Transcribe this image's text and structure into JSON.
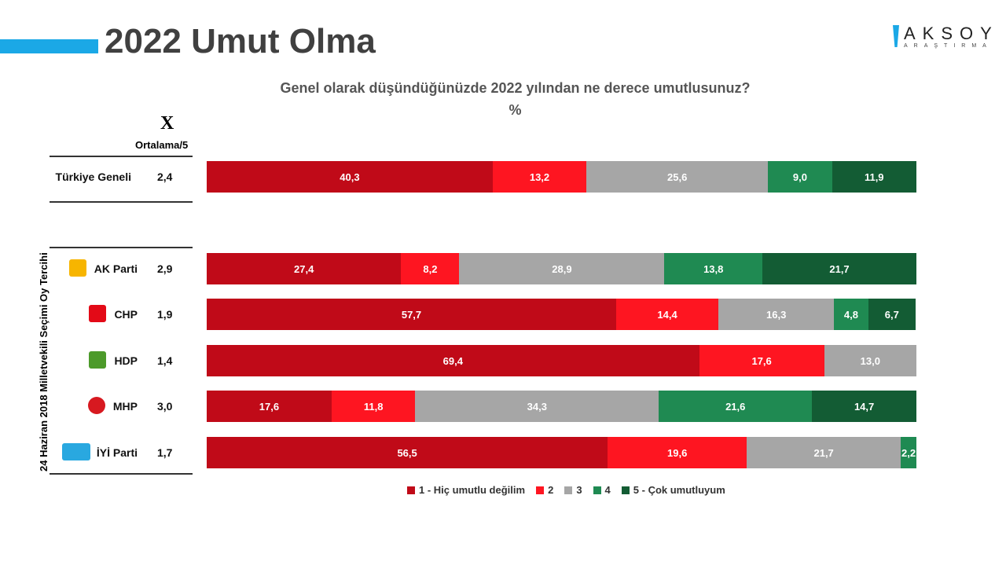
{
  "header": {
    "title": "2022 Umut Olma",
    "logo_text": "AKSOY",
    "logo_subtext": "ARAŞTIRMA"
  },
  "chart_data": {
    "type": "bar",
    "orientation": "horizontal-stacked-100",
    "title": "Genel olarak düşündüğünüzde 2022 yılından ne derece umutlusunuz?",
    "subtitle": "%",
    "avg_header_symbol": "X",
    "avg_header": "Ortalama/5",
    "group_label": "24 Haziran 2018 Milletvekili Seçimi Oy Tercihi",
    "categories": [
      "Türkiye Geneli",
      "AK Parti",
      "CHP",
      "HDP",
      "MHP",
      "İYİ Parti"
    ],
    "averages": [
      "2,4",
      "2,9",
      "1,9",
      "1,4",
      "3,0",
      "1,7"
    ],
    "series": [
      {
        "name": "1 - Hiç umutlu değilim",
        "color": "#c00a18",
        "values": [
          40.3,
          27.4,
          57.7,
          69.4,
          17.6,
          56.5
        ]
      },
      {
        "name": "2",
        "color": "#fe1521",
        "values": [
          13.2,
          8.2,
          14.4,
          17.6,
          11.8,
          19.6
        ]
      },
      {
        "name": "3",
        "color": "#a6a6a6",
        "values": [
          25.6,
          28.9,
          16.3,
          13.0,
          34.3,
          21.7
        ]
      },
      {
        "name": "4",
        "color": "#1f8a52",
        "values": [
          9.0,
          13.8,
          4.8,
          0,
          21.6,
          2.2
        ]
      },
      {
        "name": "5 - Çok umutluyum",
        "color": "#135c34",
        "values": [
          11.9,
          21.7,
          6.7,
          0,
          14.7,
          0
        ]
      }
    ],
    "legend_position": "bottom"
  }
}
